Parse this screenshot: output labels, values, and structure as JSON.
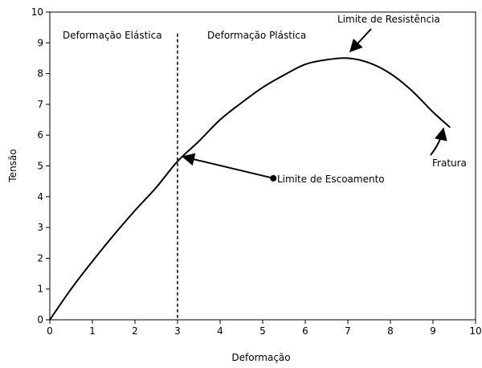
{
  "chart_data": {
    "type": "line",
    "xlabel": "Deformação",
    "ylabel": "Tensão",
    "xlim": [
      0,
      10
    ],
    "ylim": [
      0,
      10
    ],
    "x_ticks": [
      "0",
      "1",
      "2",
      "3",
      "4",
      "5",
      "6",
      "7",
      "8",
      "9",
      "10"
    ],
    "y_ticks": [
      "0",
      "1",
      "2",
      "3",
      "4",
      "5",
      "6",
      "7",
      "8",
      "9",
      "10"
    ],
    "grid": false,
    "legend": "none",
    "colors": {
      "line": "#000000",
      "axis": "#000000",
      "background": "#ffffff"
    },
    "series": [
      {
        "x": [
          0,
          0.5,
          1,
          1.5,
          2,
          2.5,
          3,
          3.5,
          4,
          4.5,
          5,
          5.5,
          6,
          6.5,
          7,
          7.5,
          8,
          8.5,
          9,
          9.4
        ],
        "y": [
          0,
          1.0,
          1.9,
          2.75,
          3.55,
          4.3,
          5.15,
          5.8,
          6.5,
          7.05,
          7.55,
          7.95,
          8.3,
          8.45,
          8.5,
          8.35,
          8.0,
          7.45,
          6.75,
          6.25
        ]
      }
    ],
    "yield_line_x": 3.0,
    "annotations": {
      "elastic_label": "Deformação Elástica",
      "plastic_label": "Deformação Plástica",
      "strength_label": "Limite de Resistência",
      "yield_label": "Limite de Escoamento",
      "fracture_label": "Fratura"
    },
    "yield_point": {
      "x": 3.05,
      "y": 5.3
    },
    "yield_marker": {
      "x": 5.25,
      "y": 4.6
    }
  }
}
